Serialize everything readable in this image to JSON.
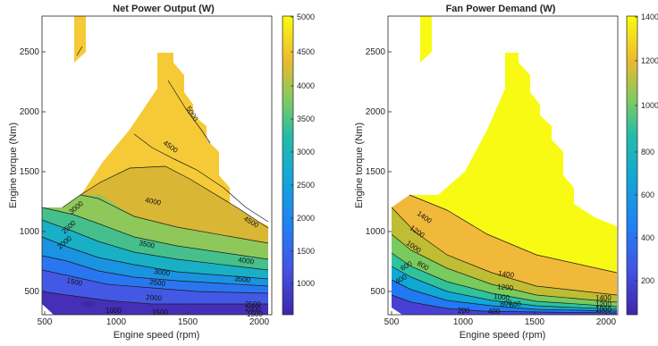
{
  "chart_data": [
    {
      "type": "contour",
      "title": "Net Power Output (W)",
      "xlabel": "Engine speed (rpm)",
      "ylabel": "Engine torque (Nm)",
      "xlim": [
        480,
        2080
      ],
      "ylim": [
        320,
        2800
      ],
      "xticks": [
        "500",
        "1000",
        "1500",
        "2000"
      ],
      "yticks": [
        "500",
        "1000",
        "1500",
        "2000",
        "2500"
      ],
      "colorbar": {
        "range": [
          500,
          5000
        ],
        "ticks": [
          "1000",
          "1500",
          "2000",
          "2500",
          "3000",
          "3500",
          "4000",
          "4500",
          "5000"
        ]
      },
      "contour_labels": [
        "5000",
        "4500",
        "4000",
        "4500",
        "3000",
        "2500",
        "2000",
        "3500",
        "3000",
        "4000",
        "3500",
        "2500",
        "2000",
        "1500",
        "1000",
        "1500",
        "2500",
        "2000",
        "1500"
      ]
    },
    {
      "type": "contour",
      "title": "Fan Power Demand (W)",
      "xlabel": "Engine speed (rpm)",
      "ylabel": "Engine torque (Nm)",
      "xlim": [
        480,
        2080
      ],
      "ylim": [
        320,
        2800
      ],
      "xticks": [
        "500",
        "1000",
        "1500",
        "2000"
      ],
      "yticks": [
        "500",
        "1000",
        "1500",
        "2000",
        "2500"
      ],
      "colorbar": {
        "range": [
          50,
          1450
        ],
        "ticks": [
          "200",
          "400",
          "600",
          "800",
          "1000",
          "1200",
          "1400"
        ]
      },
      "contour_labels": [
        "1400",
        "1200",
        "1000",
        "800",
        "600",
        "400",
        "1400",
        "1200",
        "1000",
        "800",
        "600",
        "400",
        "200",
        "1400",
        "1200",
        "1000"
      ]
    }
  ]
}
